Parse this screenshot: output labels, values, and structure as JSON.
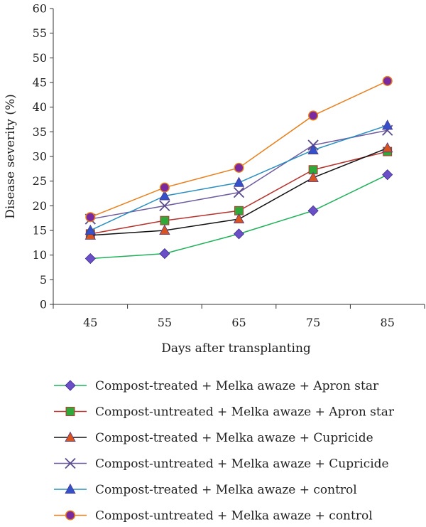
{
  "chart_data": {
    "type": "line",
    "title": "",
    "xlabel": "Days after transplanting",
    "ylabel": "Disease severity (%)",
    "x": [
      45,
      55,
      65,
      75,
      85
    ],
    "xlim": [
      40,
      90
    ],
    "ylim": [
      0,
      60
    ],
    "yticks": [
      0,
      5,
      10,
      15,
      20,
      25,
      30,
      35,
      40,
      45,
      50,
      55,
      60
    ],
    "xticks": [
      45,
      55,
      65,
      75,
      85
    ],
    "grid": false,
    "legend_position": "bottom",
    "series": [
      {
        "name": "Compost-treated + Melka awaze + Apron star",
        "values": [
          9.3,
          10.3,
          14.3,
          19.0,
          26.3
        ],
        "line_color": "#1fb05a",
        "marker": "diamond",
        "marker_color": "#6a4fc7"
      },
      {
        "name": "Compost-untreated + Melka awaze + Apron star",
        "values": [
          14.3,
          17.0,
          19.0,
          27.3,
          31.0
        ],
        "line_color": "#b5322d",
        "marker": "square",
        "marker_color": "#2faa3a"
      },
      {
        "name": "Compost-treated + Melka awaze + Cupricide",
        "values": [
          14.0,
          15.0,
          17.3,
          25.7,
          31.7
        ],
        "line_color": "#111111",
        "marker": "triangle",
        "marker_color": "#d9541e"
      },
      {
        "name": "Compost-untreated + Melka awaze + Cupricide",
        "values": [
          17.3,
          20.0,
          22.7,
          32.3,
          35.3
        ],
        "line_color": "#6e5a9e",
        "marker": "x",
        "marker_color": "#5a4c8c"
      },
      {
        "name": "Compost-treated + Melka awaze + control",
        "values": [
          15.0,
          22.0,
          24.7,
          31.3,
          36.3
        ],
        "line_color": "#2a8fc0",
        "marker": "triangle",
        "marker_color": "#3550c8"
      },
      {
        "name": "Compost-untreated + Melka awaze + control",
        "values": [
          17.7,
          23.7,
          27.7,
          38.3,
          45.3
        ],
        "line_color": "#e8801e",
        "marker": "circle",
        "marker_color": "#7a2aa0"
      }
    ]
  }
}
